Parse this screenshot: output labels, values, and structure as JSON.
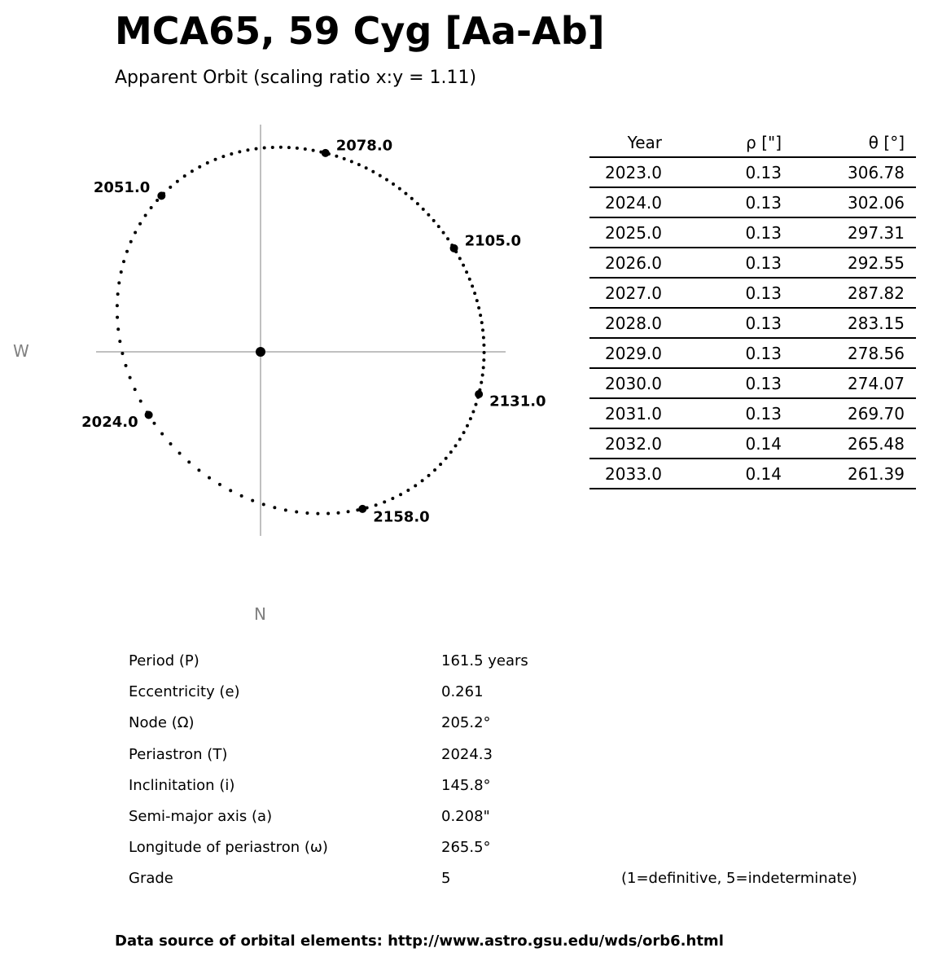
{
  "title": "MCA65, 59 Cyg [Aa-Ab]",
  "subtitle": "Apparent Orbit (scaling ratio x:y = 1.11)",
  "chart_data": {
    "type": "scatter",
    "description_kind": "apparent binary orbit",
    "axis_labels": {
      "west": "W",
      "north": "N"
    },
    "scaling_ratio_xy": 1.11,
    "elements": {
      "P": 161.5,
      "e": 0.261,
      "node": 205.2,
      "T": 2024.3,
      "i": 145.8,
      "a": 0.208,
      "omega": 265.5
    },
    "marked_epochs": [
      {
        "label": "2024.0",
        "year": 2024.0
      },
      {
        "label": "2051.0",
        "year": 2051.0
      },
      {
        "label": "2078.0",
        "year": 2078.0
      },
      {
        "label": "2105.0",
        "year": 2105.0
      },
      {
        "label": "2131.0",
        "year": 2131.0
      },
      {
        "label": "2158.0",
        "year": 2158.0
      }
    ],
    "primary_at_origin": true,
    "colors": {
      "orbit": "#000000",
      "axes": "#808080"
    }
  },
  "ephemeris": {
    "headers": [
      "Year",
      "ρ [\"]",
      "θ [°]"
    ],
    "rows": [
      [
        "2023.0",
        "0.13",
        "306.78"
      ],
      [
        "2024.0",
        "0.13",
        "302.06"
      ],
      [
        "2025.0",
        "0.13",
        "297.31"
      ],
      [
        "2026.0",
        "0.13",
        "292.55"
      ],
      [
        "2027.0",
        "0.13",
        "287.82"
      ],
      [
        "2028.0",
        "0.13",
        "283.15"
      ],
      [
        "2029.0",
        "0.13",
        "278.56"
      ],
      [
        "2030.0",
        "0.13",
        "274.07"
      ],
      [
        "2031.0",
        "0.13",
        "269.70"
      ],
      [
        "2032.0",
        "0.14",
        "265.48"
      ],
      [
        "2033.0",
        "0.14",
        "261.39"
      ]
    ]
  },
  "orbital_elements": [
    {
      "label": "Period (P)",
      "value": "161.5 years"
    },
    {
      "label": "Eccentricity (e)",
      "value": "0.261"
    },
    {
      "label": "Node (Ω)",
      "value": "205.2°"
    },
    {
      "label": "Periastron (T)",
      "value": "2024.3"
    },
    {
      "label": "Inclinitation (i)",
      "value": "145.8°"
    },
    {
      "label": "Semi-major axis (a)",
      "value": "0.208\""
    },
    {
      "label": "Longitude of periastron (ω)",
      "value": "265.5°"
    },
    {
      "label": "Grade",
      "value": "5",
      "note": "(1=definitive, 5=indeterminate)"
    }
  ],
  "footer": "Data source of orbital elements: http://www.astro.gsu.edu/wds/orb6.html"
}
